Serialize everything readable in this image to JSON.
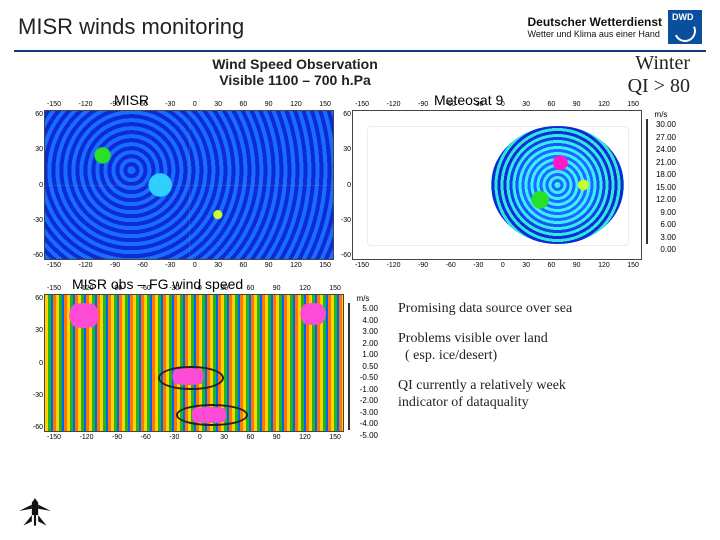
{
  "header": {
    "title": "MISR winds monitoring",
    "org_line1": "Deutscher Wetterdienst",
    "org_line2": "Wetter und Klima aus einer Hand",
    "org_abbrev": "DWD",
    "logo_bg": "#0a4f9e"
  },
  "subtitle": {
    "line1": "Wind Speed Observation",
    "line2": "Visible 1100 – 700 h.Pa"
  },
  "right_label": {
    "line1": "Winter",
    "line2": "QI > 80"
  },
  "panel_labels": {
    "left": "MISR",
    "right": "Meteosat 9",
    "diff": "MISR obs – FG wind speed"
  },
  "axes": {
    "lon_ticks": [
      "-150",
      "-120",
      "-90",
      "-60",
      "-30",
      "0",
      "30",
      "60",
      "90",
      "120",
      "150"
    ],
    "lat_ticks": [
      "60",
      "30",
      "0",
      "-30",
      "-60"
    ]
  },
  "colorbar_speed": {
    "unit": "m/s",
    "ticks": [
      "30.00",
      "27.00",
      "24.00",
      "21.00",
      "18.00",
      "15.00",
      "12.00",
      "9.00",
      "6.00",
      "3.00",
      "0.00"
    ],
    "colors": [
      "#ff3bd6",
      "#ff1720",
      "#ff7a00",
      "#ffd000",
      "#c9ff2b",
      "#42ff42",
      "#17d98b",
      "#17d4ff",
      "#1a7bff",
      "#1020d0"
    ]
  },
  "colorbar_diff": {
    "unit": "m/s",
    "ticks": [
      "5.00",
      "4.00",
      "3.00",
      "2.00",
      "1.00",
      "0.50",
      "-0.50",
      "-1.00",
      "-2.00",
      "-3.00",
      "-4.00",
      "-5.00"
    ],
    "colors": [
      "#ff3bd6",
      "#ff1720",
      "#ff7a00",
      "#ffd000",
      "#c9ff2b",
      "#42ff42",
      "#17d98b",
      "#17d4ff",
      "#1a7bff",
      "#1020d0",
      "#6a18c8"
    ]
  },
  "notes": {
    "n1": "Promising data source over sea",
    "n2a": "Problems visible over land",
    "n2b": "( esp. ice/desert)",
    "n3a": "QI currently a relatively week",
    "n3b": "indicator of dataquality"
  },
  "ovals": [
    {
      "left_pct": 38,
      "top_pct": 52,
      "w_pct": 22,
      "h_pct": 18
    },
    {
      "left_pct": 44,
      "top_pct": 80,
      "w_pct": 24,
      "h_pct": 16
    }
  ]
}
